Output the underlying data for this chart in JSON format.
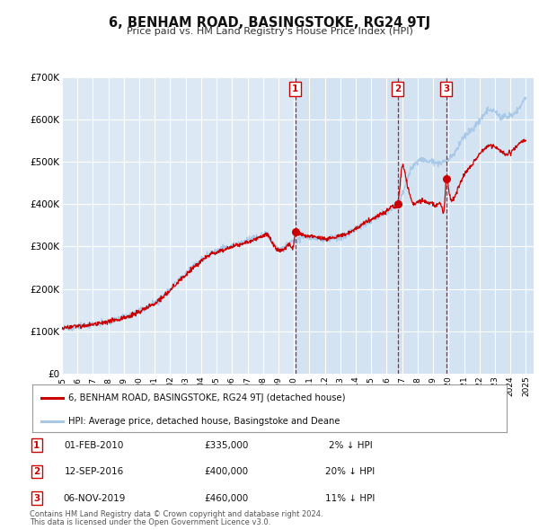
{
  "title": "6, BENHAM ROAD, BASINGSTOKE, RG24 9TJ",
  "subtitle": "Price paid vs. HM Land Registry's House Price Index (HPI)",
  "background_color": "#ffffff",
  "plot_bg_color": "#dce9f5",
  "plot_bg_color2": "#ccdff0",
  "grid_color": "#ffffff",
  "hpi_color": "#a8c8e8",
  "price_color": "#cc0000",
  "ylim": [
    0,
    700000
  ],
  "yticks": [
    0,
    100000,
    200000,
    300000,
    400000,
    500000,
    600000,
    700000
  ],
  "ytick_labels": [
    "£0",
    "£100K",
    "£200K",
    "£300K",
    "£400K",
    "£500K",
    "£600K",
    "£700K"
  ],
  "xlim_start": 1995,
  "xlim_end": 2025.5,
  "transactions": [
    {
      "num": 1,
      "date_label": "01-FEB-2010",
      "price": 335000,
      "price_label": "£335,000",
      "pct": "2%",
      "x": 2010.083
    },
    {
      "num": 2,
      "date_label": "12-SEP-2016",
      "price": 400000,
      "price_label": "£400,000",
      "pct": "20%",
      "x": 2016.703
    },
    {
      "num": 3,
      "date_label": "06-NOV-2019",
      "price": 460000,
      "price_label": "£460,000",
      "pct": "11%",
      "x": 2019.847
    }
  ],
  "legend_label_red": "6, BENHAM ROAD, BASINGSTOKE, RG24 9TJ (detached house)",
  "legend_label_blue": "HPI: Average price, detached house, Basingstoke and Deane",
  "footnote1": "Contains HM Land Registry data © Crown copyright and database right 2024.",
  "footnote2": "This data is licensed under the Open Government Licence v3.0.",
  "hpi_anchors": [
    [
      1995.0,
      108000
    ],
    [
      1995.5,
      110000
    ],
    [
      1996.0,
      112000
    ],
    [
      1996.5,
      113500
    ],
    [
      1997.0,
      116000
    ],
    [
      1997.5,
      120000
    ],
    [
      1998.0,
      124000
    ],
    [
      1998.5,
      128000
    ],
    [
      1999.0,
      134000
    ],
    [
      1999.5,
      140000
    ],
    [
      2000.0,
      148000
    ],
    [
      2000.5,
      158000
    ],
    [
      2001.0,
      168000
    ],
    [
      2001.5,
      182000
    ],
    [
      2002.0,
      200000
    ],
    [
      2002.5,
      218000
    ],
    [
      2003.0,
      235000
    ],
    [
      2003.5,
      252000
    ],
    [
      2004.0,
      268000
    ],
    [
      2004.5,
      282000
    ],
    [
      2005.0,
      290000
    ],
    [
      2005.5,
      296000
    ],
    [
      2006.0,
      302000
    ],
    [
      2006.5,
      308000
    ],
    [
      2007.0,
      315000
    ],
    [
      2007.5,
      322000
    ],
    [
      2008.0,
      328000
    ],
    [
      2008.25,
      335000
    ],
    [
      2008.5,
      320000
    ],
    [
      2008.75,
      305000
    ],
    [
      2009.0,
      295000
    ],
    [
      2009.25,
      295000
    ],
    [
      2009.5,
      302000
    ],
    [
      2009.75,
      308000
    ],
    [
      2010.0,
      314000
    ],
    [
      2010.5,
      320000
    ],
    [
      2011.0,
      322000
    ],
    [
      2011.5,
      318000
    ],
    [
      2012.0,
      316000
    ],
    [
      2012.5,
      318000
    ],
    [
      2013.0,
      322000
    ],
    [
      2013.5,
      330000
    ],
    [
      2014.0,
      340000
    ],
    [
      2014.5,
      352000
    ],
    [
      2015.0,
      362000
    ],
    [
      2015.5,
      372000
    ],
    [
      2016.0,
      382000
    ],
    [
      2016.5,
      393000
    ],
    [
      2016.703,
      398000
    ],
    [
      2017.0,
      420000
    ],
    [
      2017.25,
      450000
    ],
    [
      2017.5,
      475000
    ],
    [
      2017.75,
      490000
    ],
    [
      2018.0,
      500000
    ],
    [
      2018.25,
      505000
    ],
    [
      2018.5,
      502000
    ],
    [
      2018.75,
      500000
    ],
    [
      2019.0,
      498000
    ],
    [
      2019.25,
      496000
    ],
    [
      2019.5,
      498000
    ],
    [
      2019.75,
      500000
    ],
    [
      2020.0,
      505000
    ],
    [
      2020.25,
      515000
    ],
    [
      2020.5,
      530000
    ],
    [
      2020.75,
      545000
    ],
    [
      2021.0,
      558000
    ],
    [
      2021.25,
      568000
    ],
    [
      2021.5,
      575000
    ],
    [
      2021.75,
      585000
    ],
    [
      2022.0,
      598000
    ],
    [
      2022.25,
      610000
    ],
    [
      2022.5,
      618000
    ],
    [
      2022.75,
      622000
    ],
    [
      2023.0,
      618000
    ],
    [
      2023.25,
      610000
    ],
    [
      2023.5,
      605000
    ],
    [
      2023.75,
      605000
    ],
    [
      2024.0,
      608000
    ],
    [
      2024.25,
      615000
    ],
    [
      2024.5,
      625000
    ],
    [
      2024.75,
      638000
    ],
    [
      2025.0,
      648000
    ]
  ],
  "price_anchors": [
    [
      1995.0,
      108000
    ],
    [
      1995.5,
      110000
    ],
    [
      1996.0,
      112000
    ],
    [
      1996.5,
      113000
    ],
    [
      1997.0,
      115000
    ],
    [
      1997.5,
      119000
    ],
    [
      1998.0,
      123000
    ],
    [
      1998.5,
      127000
    ],
    [
      1999.0,
      132000
    ],
    [
      1999.5,
      138000
    ],
    [
      2000.0,
      146000
    ],
    [
      2000.5,
      156000
    ],
    [
      2001.0,
      166000
    ],
    [
      2001.5,
      180000
    ],
    [
      2002.0,
      197000
    ],
    [
      2002.5,
      215000
    ],
    [
      2003.0,
      232000
    ],
    [
      2003.5,
      250000
    ],
    [
      2004.0,
      265000
    ],
    [
      2004.5,
      279000
    ],
    [
      2005.0,
      287000
    ],
    [
      2005.5,
      293000
    ],
    [
      2006.0,
      299000
    ],
    [
      2006.5,
      305000
    ],
    [
      2007.0,
      311000
    ],
    [
      2007.5,
      318000
    ],
    [
      2008.0,
      325000
    ],
    [
      2008.25,
      330000
    ],
    [
      2008.5,
      315000
    ],
    [
      2008.75,
      300000
    ],
    [
      2009.0,
      290000
    ],
    [
      2009.25,
      292000
    ],
    [
      2009.5,
      298000
    ],
    [
      2009.75,
      305000
    ],
    [
      2010.0,
      310000
    ],
    [
      2010.083,
      335000
    ],
    [
      2010.25,
      332000
    ],
    [
      2010.5,
      328000
    ],
    [
      2010.75,
      326000
    ],
    [
      2011.0,
      325000
    ],
    [
      2011.5,
      320000
    ],
    [
      2012.0,
      318000
    ],
    [
      2012.5,
      320000
    ],
    [
      2013.0,
      324000
    ],
    [
      2013.5,
      332000
    ],
    [
      2014.0,
      342000
    ],
    [
      2014.5,
      354000
    ],
    [
      2015.0,
      364000
    ],
    [
      2015.5,
      374000
    ],
    [
      2016.0,
      384000
    ],
    [
      2016.5,
      393000
    ],
    [
      2016.703,
      400000
    ],
    [
      2016.9,
      460000
    ],
    [
      2017.0,
      490000
    ],
    [
      2017.1,
      485000
    ],
    [
      2017.25,
      460000
    ],
    [
      2017.5,
      420000
    ],
    [
      2017.75,
      400000
    ],
    [
      2018.0,
      405000
    ],
    [
      2018.25,
      408000
    ],
    [
      2018.5,
      405000
    ],
    [
      2018.75,
      402000
    ],
    [
      2019.0,
      400000
    ],
    [
      2019.25,
      398000
    ],
    [
      2019.5,
      400000
    ],
    [
      2019.75,
      405000
    ],
    [
      2019.847,
      460000
    ],
    [
      2020.0,
      440000
    ],
    [
      2020.1,
      415000
    ],
    [
      2020.25,
      410000
    ],
    [
      2020.5,
      425000
    ],
    [
      2020.75,
      450000
    ],
    [
      2021.0,
      468000
    ],
    [
      2021.25,
      480000
    ],
    [
      2021.5,
      492000
    ],
    [
      2021.75,
      505000
    ],
    [
      2022.0,
      518000
    ],
    [
      2022.25,
      528000
    ],
    [
      2022.5,
      535000
    ],
    [
      2022.75,
      540000
    ],
    [
      2023.0,
      535000
    ],
    [
      2023.25,
      528000
    ],
    [
      2023.5,
      520000
    ],
    [
      2023.75,
      518000
    ],
    [
      2024.0,
      522000
    ],
    [
      2024.25,
      530000
    ],
    [
      2024.5,
      540000
    ],
    [
      2024.75,
      548000
    ],
    [
      2025.0,
      552000
    ]
  ]
}
